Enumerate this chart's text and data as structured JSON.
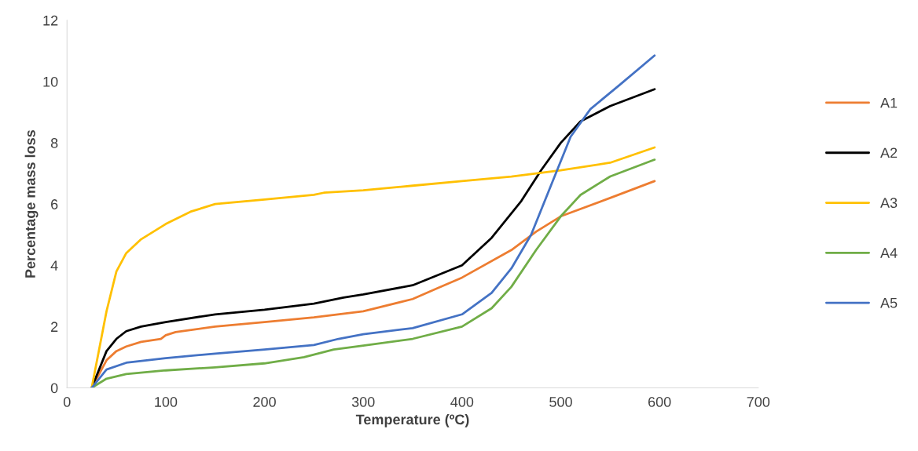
{
  "chart_data": {
    "type": "line",
    "xlabel": "Temperature (ºC)",
    "ylabel": "Percentage mass loss",
    "xlim": [
      0,
      700
    ],
    "xticks": [
      0,
      100,
      200,
      300,
      400,
      500,
      600,
      700
    ],
    "ylim": [
      0,
      12
    ],
    "yticks": [
      0,
      2,
      4,
      6,
      8,
      10,
      12
    ],
    "grid": false,
    "legend": "right",
    "marker": "none",
    "line_style": "solid",
    "series": [
      {
        "name": "A1",
        "color": "#ed7d31",
        "x": [
          25,
          40,
          50,
          60,
          75,
          95,
          100,
          110,
          150,
          200,
          250,
          300,
          350,
          375,
          400,
          450,
          475,
          500,
          550,
          595
        ],
        "values": [
          0,
          0.9,
          1.2,
          1.35,
          1.5,
          1.6,
          1.72,
          1.82,
          2.0,
          2.15,
          2.3,
          2.5,
          2.9,
          3.25,
          3.6,
          4.5,
          5.1,
          5.6,
          6.2,
          6.75
        ]
      },
      {
        "name": "A2",
        "color": "#000000",
        "x": [
          25,
          40,
          50,
          60,
          75,
          100,
          150,
          200,
          250,
          280,
          300,
          350,
          400,
          430,
          460,
          480,
          500,
          520,
          550,
          595
        ],
        "values": [
          0,
          1.2,
          1.6,
          1.85,
          2.0,
          2.15,
          2.4,
          2.55,
          2.75,
          2.95,
          3.05,
          3.35,
          4.0,
          4.9,
          6.1,
          7.1,
          8.0,
          8.7,
          9.2,
          9.75
        ]
      },
      {
        "name": "A3",
        "color": "#ffc000",
        "x": [
          25,
          40,
          50,
          60,
          75,
          100,
          125,
          150,
          200,
          250,
          260,
          300,
          350,
          400,
          450,
          500,
          550,
          595
        ],
        "values": [
          0,
          2.5,
          3.8,
          4.4,
          4.85,
          5.35,
          5.75,
          6.0,
          6.15,
          6.3,
          6.37,
          6.45,
          6.6,
          6.75,
          6.9,
          7.1,
          7.35,
          7.85
        ]
      },
      {
        "name": "A4",
        "color": "#70ad47",
        "x": [
          25,
          40,
          60,
          100,
          150,
          200,
          240,
          270,
          300,
          350,
          400,
          430,
          450,
          475,
          500,
          520,
          550,
          595
        ],
        "values": [
          0,
          0.3,
          0.45,
          0.57,
          0.67,
          0.8,
          1.0,
          1.25,
          1.38,
          1.6,
          2.0,
          2.6,
          3.3,
          4.5,
          5.6,
          6.3,
          6.9,
          7.45
        ]
      },
      {
        "name": "A5",
        "color": "#4472c4",
        "x": [
          25,
          40,
          60,
          100,
          150,
          200,
          250,
          275,
          300,
          350,
          400,
          430,
          450,
          470,
          490,
          510,
          530,
          560,
          595
        ],
        "values": [
          0,
          0.6,
          0.82,
          0.97,
          1.12,
          1.25,
          1.4,
          1.6,
          1.75,
          1.95,
          2.4,
          3.1,
          3.9,
          5.0,
          6.6,
          8.2,
          9.1,
          9.9,
          10.85
        ]
      }
    ]
  }
}
